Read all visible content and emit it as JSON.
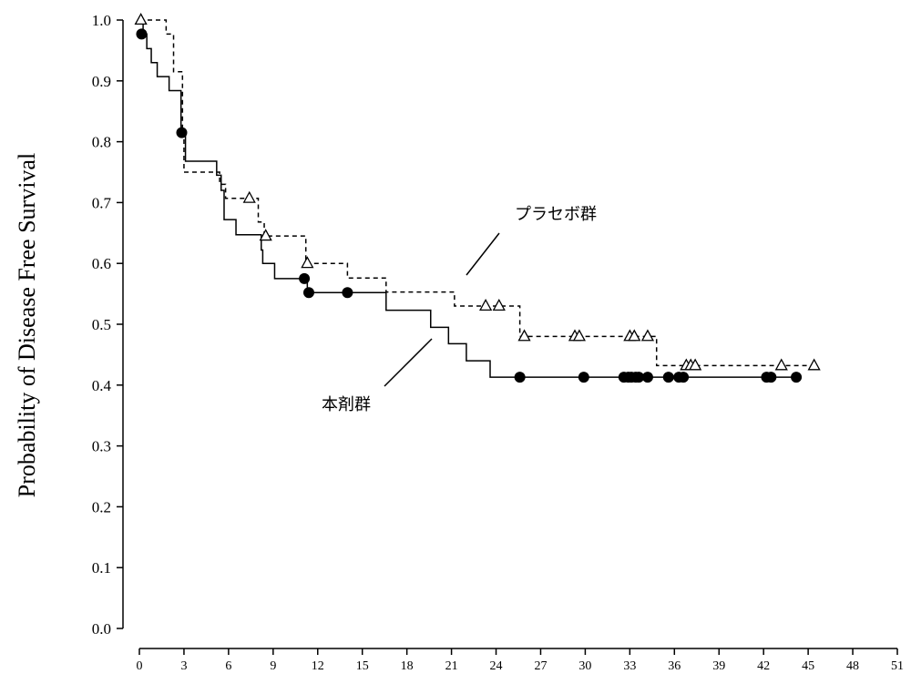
{
  "chart_data": {
    "type": "line",
    "title": "",
    "xlabel": "",
    "ylabel": "Probability of Disease Free Survival",
    "xlim": [
      0,
      51
    ],
    "ylim": [
      0,
      1
    ],
    "x_ticks": [
      "0",
      "3",
      "6",
      "9",
      "12",
      "15",
      "18",
      "21",
      "24",
      "27",
      "30",
      "33",
      "36",
      "39",
      "42",
      "45",
      "48",
      "51"
    ],
    "y_ticks": [
      "0.0",
      "0.1",
      "0.2",
      "0.3",
      "0.4",
      "0.5",
      "0.6",
      "0.7",
      "0.8",
      "0.9",
      "1.0"
    ],
    "grid": false,
    "series": [
      {
        "name": "本剤群",
        "style": "solid",
        "marker": "filled-circle",
        "color": "#000000",
        "steps": [
          [
            0,
            1.0
          ],
          [
            0.25,
            0.977
          ],
          [
            0.5,
            0.953
          ],
          [
            0.8,
            0.93
          ],
          [
            1.2,
            0.907
          ],
          [
            2.0,
            0.884
          ],
          [
            2.8,
            0.815
          ],
          [
            3.1,
            0.768
          ],
          [
            5.2,
            0.745
          ],
          [
            5.5,
            0.72
          ],
          [
            5.7,
            0.672
          ],
          [
            6.5,
            0.647
          ],
          [
            8.2,
            0.622
          ],
          [
            8.3,
            0.6
          ],
          [
            9.1,
            0.575
          ],
          [
            11.3,
            0.552
          ],
          [
            16.6,
            0.523
          ],
          [
            19.6,
            0.495
          ],
          [
            20.8,
            0.468
          ],
          [
            22.0,
            0.44
          ],
          [
            23.6,
            0.413
          ]
        ],
        "end_x": 44.2,
        "censor_marks": [
          [
            0.15,
            0.977
          ],
          [
            2.85,
            0.815
          ],
          [
            11.1,
            0.575
          ],
          [
            11.4,
            0.552
          ],
          [
            14.0,
            0.552
          ],
          [
            25.6,
            0.413
          ],
          [
            29.9,
            0.413
          ],
          [
            32.6,
            0.413
          ],
          [
            32.9,
            0.413
          ],
          [
            33.1,
            0.413
          ],
          [
            33.4,
            0.413
          ],
          [
            33.6,
            0.413
          ],
          [
            34.2,
            0.413
          ],
          [
            35.6,
            0.413
          ],
          [
            36.3,
            0.413
          ],
          [
            36.6,
            0.413
          ],
          [
            42.2,
            0.413
          ],
          [
            42.5,
            0.413
          ],
          [
            44.2,
            0.413
          ]
        ]
      },
      {
        "name": "プラセボ群",
        "style": "dashed",
        "marker": "open-triangle",
        "color": "#000000",
        "steps": [
          [
            0,
            1.0
          ],
          [
            1.8,
            0.977
          ],
          [
            2.3,
            0.915
          ],
          [
            2.9,
            0.82
          ],
          [
            3.0,
            0.75
          ],
          [
            5.4,
            0.73
          ],
          [
            5.8,
            0.707
          ],
          [
            8.0,
            0.668
          ],
          [
            8.4,
            0.645
          ],
          [
            11.2,
            0.6
          ],
          [
            14.0,
            0.576
          ],
          [
            16.6,
            0.553
          ],
          [
            21.2,
            0.53
          ],
          [
            25.6,
            0.48
          ],
          [
            34.8,
            0.432
          ]
        ],
        "end_x": 45.4,
        "censor_marks": [
          [
            0.1,
            1.0
          ],
          [
            7.4,
            0.707
          ],
          [
            8.5,
            0.645
          ],
          [
            11.3,
            0.6
          ],
          [
            23.3,
            0.53
          ],
          [
            24.2,
            0.53
          ],
          [
            25.9,
            0.48
          ],
          [
            29.3,
            0.48
          ],
          [
            29.6,
            0.48
          ],
          [
            33.0,
            0.48
          ],
          [
            33.3,
            0.48
          ],
          [
            34.2,
            0.48
          ],
          [
            36.8,
            0.432
          ],
          [
            37.1,
            0.432
          ],
          [
            37.4,
            0.432
          ],
          [
            43.2,
            0.432
          ],
          [
            45.4,
            0.432
          ]
        ]
      }
    ],
    "annotations": [
      {
        "text": "プラセボ群",
        "series": 1
      },
      {
        "text": "本剤群",
        "series": 0
      }
    ]
  }
}
